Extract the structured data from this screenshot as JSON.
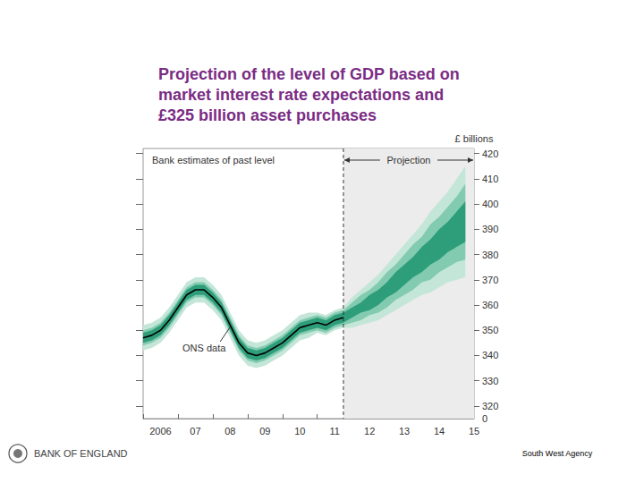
{
  "chart_data": {
    "type": "fan",
    "title": "Projection of the level of GDP based on market interest rate expectations and £325 billion asset purchases",
    "y_label": "£ billions",
    "categories": [
      null,
      null,
      "2006",
      null,
      null,
      null,
      "07",
      null,
      null,
      null,
      "08",
      null,
      null,
      null,
      "09",
      null,
      null,
      null,
      "10",
      null,
      null,
      null,
      "11",
      null,
      null,
      null,
      "12",
      null,
      null,
      null,
      "13",
      null,
      null,
      null,
      "14",
      null,
      null,
      null,
      "15"
    ],
    "series": [
      {
        "color": "#000000",
        "values": [
          347,
          348,
          350,
          354,
          359,
          364,
          366,
          366,
          363,
          359,
          352,
          345,
          341,
          340,
          341,
          343,
          345,
          348,
          351,
          352,
          353,
          352,
          354,
          355,
          null,
          null,
          null,
          null,
          null,
          null,
          null,
          null,
          null,
          null,
          null,
          null,
          null,
          null,
          null
        ]
      }
    ],
    "bands": [
      {
        "color": "#c4e6d8",
        "lower": [
          342,
          343,
          345,
          349,
          354,
          359,
          361,
          361,
          358,
          354,
          347,
          340,
          336,
          335,
          336,
          338,
          340,
          343,
          346,
          347,
          349,
          348,
          350,
          351,
          351,
          352,
          353,
          354,
          356,
          358,
          360,
          362,
          364,
          365,
          367,
          369,
          370,
          371,
          null
        ],
        "upper": [
          352,
          353,
          355,
          359,
          364,
          369,
          371,
          371,
          368,
          364,
          357,
          350,
          346,
          345,
          346,
          348,
          350,
          353,
          356,
          357,
          357,
          356,
          358,
          359,
          363,
          366,
          369,
          372,
          376,
          380,
          384,
          388,
          392,
          397,
          401,
          405,
          410,
          415,
          null
        ]
      },
      {
        "color": "#83cbb0",
        "lower": [
          344,
          345,
          347,
          351,
          356,
          361,
          363,
          363,
          360,
          356,
          349,
          342,
          338,
          337,
          338,
          340,
          342,
          345,
          348,
          349,
          350,
          349,
          351,
          352,
          353,
          354,
          356,
          357,
          359,
          362,
          364,
          366,
          369,
          370,
          373,
          375,
          377,
          378,
          null
        ],
        "upper": [
          350,
          351,
          353,
          357,
          362,
          367,
          369,
          369,
          366,
          362,
          355,
          348,
          344,
          343,
          344,
          346,
          348,
          351,
          354,
          355,
          356,
          355,
          357,
          358,
          361,
          364,
          366,
          369,
          373,
          376,
          380,
          384,
          387,
          392,
          395,
          399,
          403,
          408,
          null
        ]
      },
      {
        "color": "#2e9e7a",
        "lower": [
          345,
          346,
          348,
          352,
          357,
          362,
          364,
          364,
          361,
          357,
          350,
          343,
          339,
          338,
          339,
          341,
          343,
          346,
          349,
          350,
          351,
          350,
          352,
          353,
          355,
          357,
          358,
          360,
          363,
          365,
          368,
          371,
          373,
          376,
          378,
          381,
          383,
          385,
          null
        ],
        "upper": [
          349,
          350,
          352,
          356,
          361,
          366,
          368,
          368,
          365,
          361,
          354,
          347,
          343,
          342,
          343,
          345,
          347,
          350,
          353,
          354,
          355,
          354,
          356,
          357,
          359,
          361,
          364,
          366,
          369,
          373,
          376,
          379,
          383,
          386,
          390,
          393,
          397,
          401,
          null
        ]
      }
    ],
    "ylim": [
      315,
      422
    ],
    "yticks": [
      320,
      330,
      340,
      350,
      360,
      370,
      380,
      390,
      400,
      410,
      420
    ],
    "grid": false,
    "annotations": [
      "Bank estimates of past level",
      "Projection",
      "ONS data",
      "0"
    ],
    "footer": [
      "BANK OF ENGLAND",
      "South West Agency"
    ]
  }
}
